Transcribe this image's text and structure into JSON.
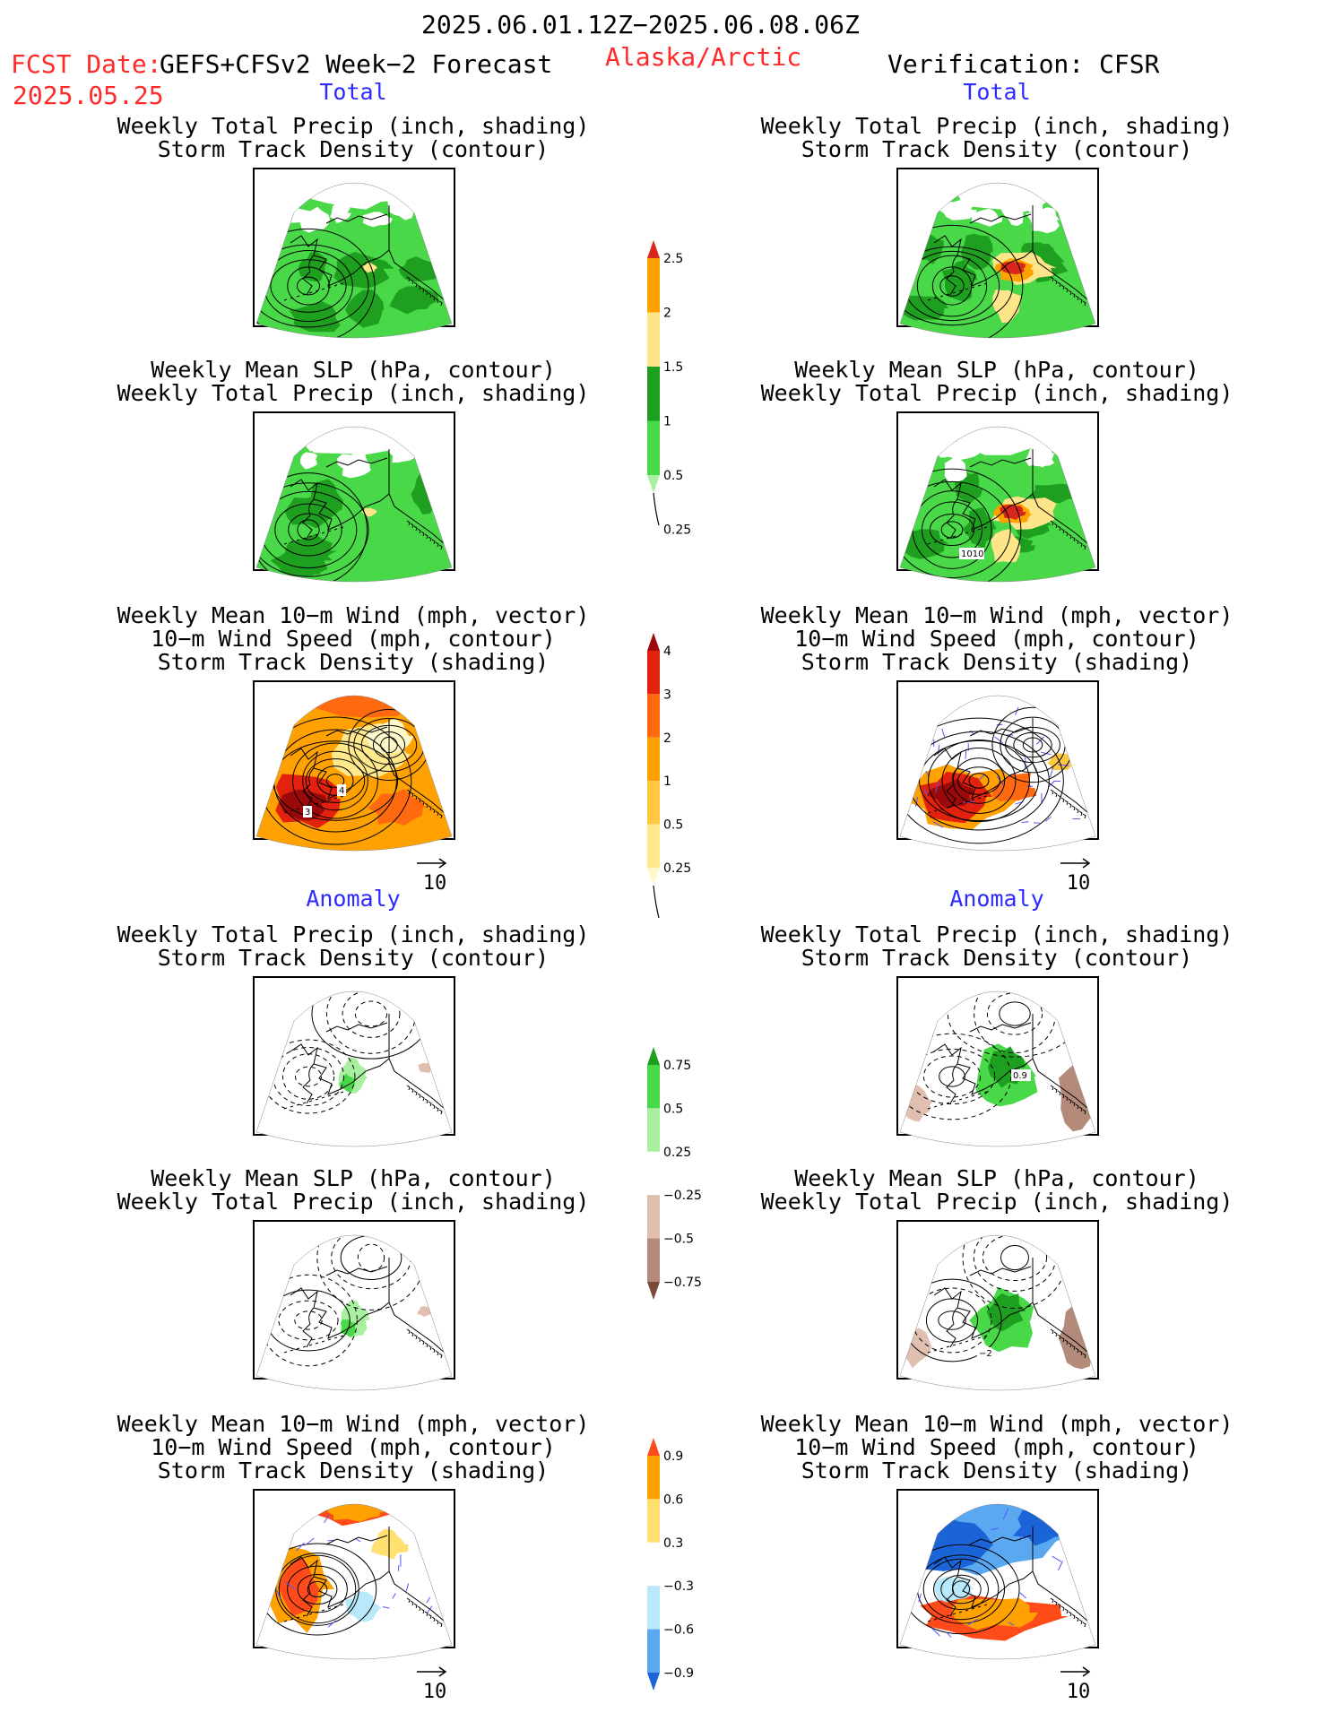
{
  "header": {
    "period": "2025.06.01.12Z−2025.06.08.06Z",
    "fcst_date_label": "FCST Date:",
    "model": "GEFS+CFSv2 Week−2 Forecast",
    "region": "Alaska/Arctic",
    "verification": "Verification: CFSR",
    "fcst_date": "2025.05.25"
  },
  "sections": {
    "total": "Total",
    "anomaly": "Anomaly"
  },
  "titles": {
    "precip_storm": [
      "Weekly Total Precip (inch, shading)",
      "Storm Track Density (contour)"
    ],
    "slp_precip": [
      "Weekly Mean SLP (hPa, contour)",
      "Weekly Total Precip (inch, shading)"
    ],
    "wind_storm": [
      "Weekly Mean 10−m Wind (mph, vector)",
      "10−m Wind Speed (mph, contour)",
      "Storm Track Density (shading)"
    ]
  },
  "panel_labels": {
    "r_total_slp": "1010",
    "l_total_wind_a": "4",
    "l_total_wind_b": "3",
    "r_anom_precip": "0.9",
    "r_anom_slp": "−2"
  },
  "reference_vector": "10",
  "colorbars": {
    "precip_total": {
      "labels": [
        "2.5",
        "2",
        "1.5",
        "1",
        "0.5",
        "0.25"
      ],
      "colors": [
        "#d9261c",
        "#ffa100",
        "#ffe58a",
        "#1f9f1f",
        "#48d848",
        "#a8f0a0"
      ]
    },
    "storm_total": {
      "labels": [
        "4",
        "3",
        "2",
        "1",
        "0.5",
        "0.25"
      ],
      "colors": [
        "#9b0a0a",
        "#e2210f",
        "#ff6a10",
        "#ffa100",
        "#ffc840",
        "#ffe98a",
        "#fff8c8"
      ]
    },
    "precip_anom": {
      "labels": [
        "0.75",
        "0.5",
        "0.25",
        "−0.25",
        "−0.5",
        "−0.75"
      ],
      "colors": [
        "#1f9f1f",
        "#48d848",
        "#a8f0a0",
        "#ffffff",
        "#e0beb0",
        "#b48a7a",
        "#7c4a38"
      ]
    },
    "storm_anom": {
      "labels": [
        "0.9",
        "0.6",
        "0.3",
        "−0.3",
        "−0.6",
        "−0.9"
      ],
      "colors": [
        "#ff4a1a",
        "#ffa100",
        "#ffe070",
        "#ffffff",
        "#b8e8fa",
        "#5aa8f0",
        "#1a64d8"
      ]
    }
  }
}
